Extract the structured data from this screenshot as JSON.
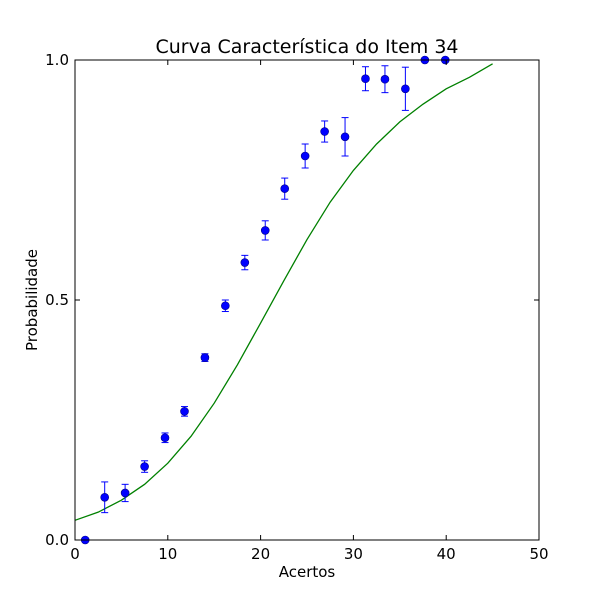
{
  "chart_data": {
    "type": "scatter",
    "title": "Curva Característica do Item 34",
    "xlabel": "Acertos",
    "ylabel": "Probabilidade",
    "xlim": [
      0,
      50
    ],
    "ylim": [
      0,
      1
    ],
    "xticks": [
      0,
      10,
      20,
      30,
      40,
      50
    ],
    "xtick_labels": [
      "0",
      "10",
      "20",
      "30",
      "40",
      "50"
    ],
    "yticks": [
      0,
      0.5,
      1
    ],
    "ytick_labels": [
      "0.0",
      "0.5",
      "1.0"
    ],
    "grid": false,
    "legend": "none",
    "colors": {
      "points": "#0000ff",
      "point_edge": "#000080",
      "errorbars": "#0000ff",
      "curve": "#008000"
    },
    "series": [
      {
        "type": "scatter-errorbar",
        "x": [
          1.1,
          3.2,
          5.4,
          7.5,
          9.7,
          11.8,
          14.0,
          16.2,
          18.3,
          20.5,
          22.6,
          24.8,
          26.9,
          29.1,
          31.3,
          33.4,
          35.6,
          37.7,
          39.9
        ],
        "y": [
          0.0,
          0.089,
          0.098,
          0.153,
          0.213,
          0.268,
          0.38,
          0.488,
          0.578,
          0.645,
          0.732,
          0.8,
          0.851,
          0.84,
          0.961,
          0.96,
          0.94,
          1.0,
          1.0
        ],
        "err": [
          0.0,
          0.032,
          0.018,
          0.012,
          0.01,
          0.01,
          0.008,
          0.012,
          0.015,
          0.02,
          0.022,
          0.025,
          0.022,
          0.04,
          0.025,
          0.028,
          0.045,
          0.0,
          0.0
        ]
      },
      {
        "type": "line",
        "x": [
          0,
          2.5,
          5,
          7.5,
          10,
          12.5,
          15,
          17.5,
          20,
          22.5,
          25,
          27.5,
          30,
          32.5,
          35,
          37.5,
          40,
          42.5,
          45
        ],
        "y": [
          0.041,
          0.058,
          0.083,
          0.116,
          0.16,
          0.216,
          0.285,
          0.365,
          0.452,
          0.54,
          0.626,
          0.704,
          0.77,
          0.825,
          0.871,
          0.908,
          0.94,
          0.964,
          0.992
        ]
      }
    ]
  }
}
